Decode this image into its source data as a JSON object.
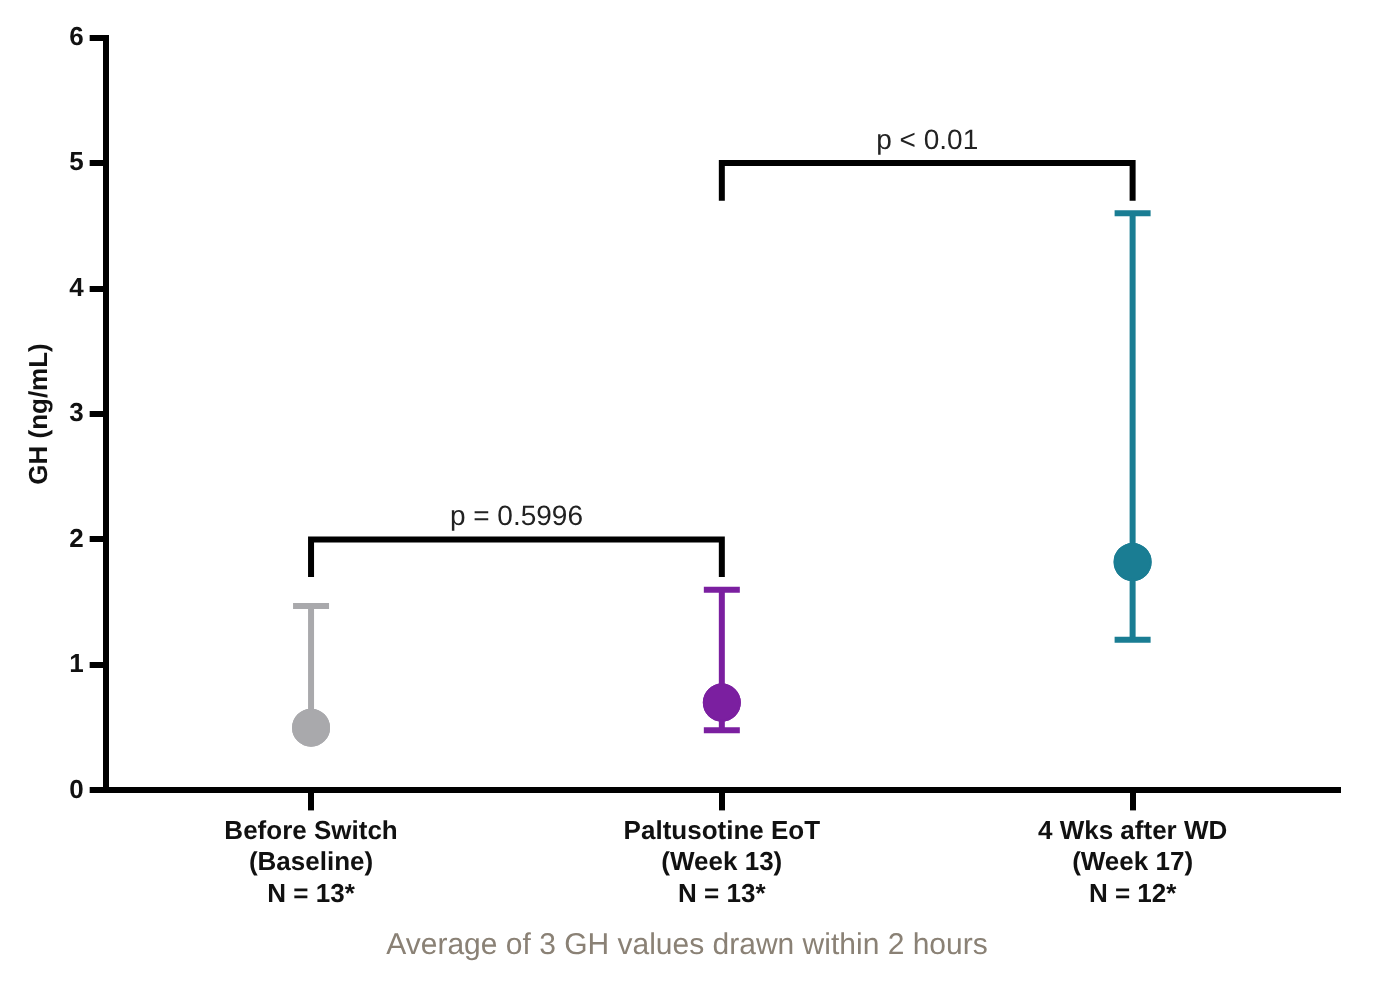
{
  "chart_data": {
    "type": "scatter",
    "categories": [
      "Before Switch\n(Baseline)\nN = 13*",
      "Paltusotine EoT\n(Week 13)\nN = 13*",
      "4 Wks after WD\n(Week 17)\nN = 12*"
    ],
    "values": [
      0.5,
      0.7,
      1.82
    ],
    "errors": [
      [
        0.5,
        1.47
      ],
      [
        0.48,
        1.6
      ],
      [
        1.2,
        4.6
      ]
    ],
    "colors": [
      "#a9a9ac",
      "#7b1fa0",
      "#1a7d93"
    ],
    "ylabel": "GH (ng/mL)",
    "ylim": [
      0,
      6
    ],
    "yticks": [
      0,
      1,
      2,
      3,
      4,
      5,
      6
    ],
    "marker": "circle",
    "grid": false,
    "legend": false,
    "annotations": [
      "p = 0.5996",
      "p < 0.01",
      "Average of 3 GH values drawn within 2 hours"
    ]
  }
}
